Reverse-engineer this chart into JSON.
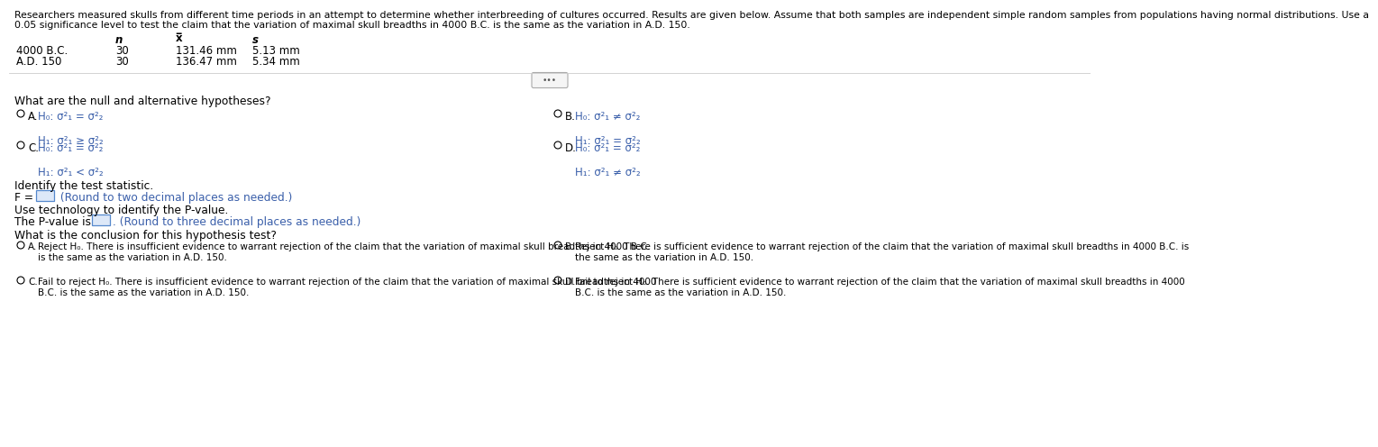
{
  "bg_color": "#ffffff",
  "header_line1": "Researchers measured skulls from different time periods in an attempt to determine whether interbreeding of cultures occurred. Results are given below. Assume that both samples are independent simple random samples from populations having normal distributions. Use a",
  "header_line2": "0.05 significance level to test the claim that the variation of maximal skull breadths in 4000 B.C. is the same as the variation in A.D. 150.",
  "col_headers": [
    "n",
    "x̅",
    "s"
  ],
  "row_labels": [
    "4000 B.C.",
    "A.D. 150"
  ],
  "row_n": [
    "30",
    "30"
  ],
  "row_x": [
    "131.46 mm",
    "136.47 mm"
  ],
  "row_s": [
    "5.13 mm",
    "5.34 mm"
  ],
  "question1": "What are the null and alternative hypotheses?",
  "hyp_A_H0": "H₀: σ²₁ = σ²₂",
  "hyp_A_H1": "H₁: σ²₁ ≥ σ²₂",
  "hyp_B_H0": "H₀: σ²₁ ≠ σ²₂",
  "hyp_B_H1": "H₁: σ²₁ = σ²₂",
  "hyp_C_H0": "H₀: σ²₁ = σ²₂",
  "hyp_C_H1": "H₁: σ²₁ < σ²₂",
  "hyp_D_H0": "H₀: σ²₁ = σ²₂",
  "hyp_D_H1": "H₁: σ²₁ ≠ σ²₂",
  "question2": "Identify the test statistic.",
  "F_prefix": "F = ",
  "F_suffix": " (Round to two decimal places as needed.)",
  "question3": "Use technology to identify the P-value.",
  "Pval_prefix": "The P-value is ",
  "Pval_suffix": ". (Round to three decimal places as needed.)",
  "question4": "What is the conclusion for this hypothesis test?",
  "conc_A1": "Reject H₀. There is insufficient evidence to warrant rejection of the claim that the variation of maximal skull breadths in 4000 B.C.",
  "conc_A2": "is the same as the variation in A.D. 150.",
  "conc_B1": "Reject H₀. There is sufficient evidence to warrant rejection of the claim that the variation of maximal skull breadths in 4000 B.C. is",
  "conc_B2": "the same as the variation in A.D. 150.",
  "conc_C1": "Fail to reject H₀. There is insufficient evidence to warrant rejection of the claim that the variation of maximal skull breadths in 4000",
  "conc_C2": "B.C. is the same as the variation in A.D. 150.",
  "conc_D1": "Fail to reject H₀. There is sufficient evidence to warrant rejection of the claim that the variation of maximal skull breadths in 4000",
  "conc_D2": "B.C. is the same as the variation in A.D. 150.",
  "black": "#000000",
  "blue": "#3a5faa",
  "gray": "#888888",
  "light_blue_box": "#dde8f8",
  "box_border": "#5588cc"
}
